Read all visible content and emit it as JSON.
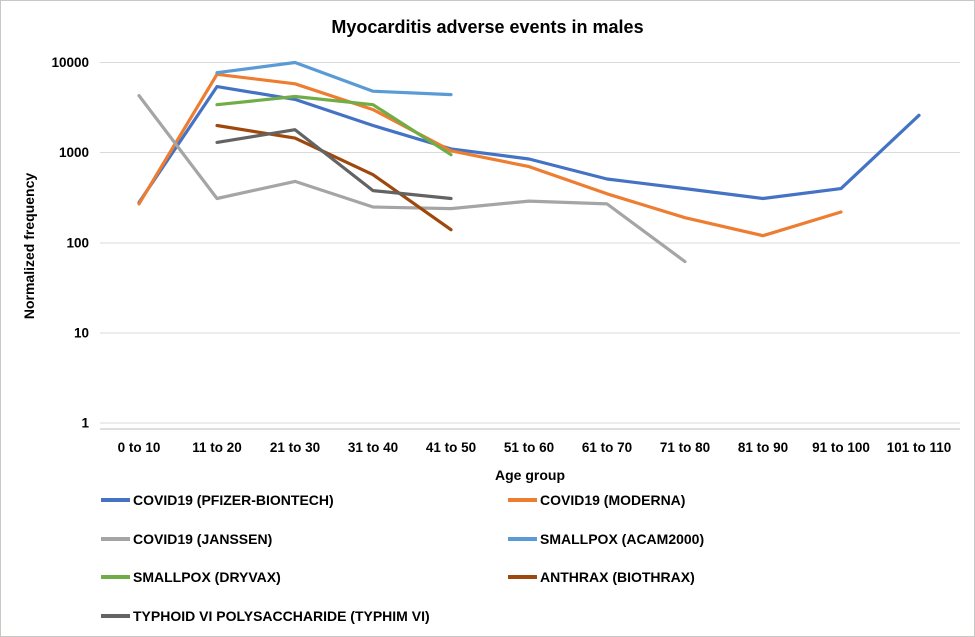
{
  "chart_data": {
    "type": "line",
    "title": "Myocarditis adverse events in males",
    "xlabel": "Age group",
    "ylabel": "Normalized frequency",
    "y_scale": "log10",
    "ylim": [
      1,
      10000
    ],
    "y_ticks": [
      10000,
      1000,
      100,
      10,
      1
    ],
    "grid": "horizontal",
    "legend_position": "bottom, two columns",
    "categories": [
      "0 to 10",
      "11 to 20",
      "21 to 30",
      "31 to 40",
      "41 to 50",
      "51 to 60",
      "61 to 70",
      "71 to 80",
      "81 to 90",
      "91 to 100",
      "101 to 110"
    ],
    "series": [
      {
        "name": "COVID19 (PFIZER-BIONTECH)",
        "color": "#4472C4",
        "start_index": 0,
        "values": [
          280,
          5400,
          3900,
          2000,
          1100,
          850,
          510,
          400,
          310,
          400,
          2600
        ]
      },
      {
        "name": "COVID19 (MODERNA)",
        "color": "#ED7D31",
        "start_index": 0,
        "values": [
          270,
          7400,
          5800,
          3000,
          1050,
          700,
          350,
          190,
          120,
          220
        ]
      },
      {
        "name": "COVID19 (JANSSEN)",
        "color": "#A5A5A5",
        "start_index": 0,
        "values": [
          4300,
          310,
          480,
          250,
          240,
          290,
          270,
          62
        ]
      },
      {
        "name": "SMALLPOX (ACAM2000)",
        "color": "#5B9BD5",
        "start_index": 1,
        "values": [
          7700,
          10000,
          4800,
          4400
        ]
      },
      {
        "name": "SMALLPOX (DRYVAX)",
        "color": "#70AD47",
        "start_index": 1,
        "values": [
          3400,
          4200,
          3400,
          950
        ]
      },
      {
        "name": "ANTHRAX (BIOTHRAX)",
        "color": "#9E480E",
        "start_index": 1,
        "values": [
          2000,
          1450,
          570,
          140
        ]
      },
      {
        "name": "TYPHOID VI POLYSACCHARIDE (TYPHIM VI)",
        "color": "#636363",
        "start_index": 1,
        "values": [
          1300,
          1800,
          380,
          310
        ]
      }
    ],
    "colors": {
      "gridline": "#D9D9D9",
      "axis_line": "#BFBFBF",
      "text": "#000000"
    }
  }
}
